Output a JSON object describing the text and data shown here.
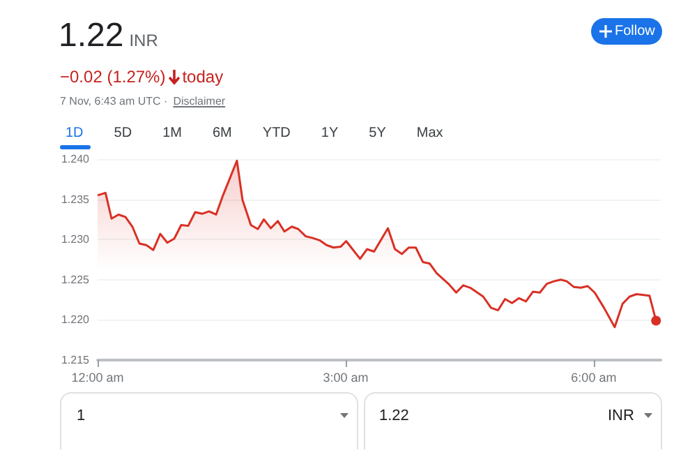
{
  "chart_data": {
    "type": "area",
    "title": "1.22",
    "annotations": [
      "INR",
      "−0.02 (1.27%)",
      "today",
      "7 Nov, 6:43 am UTC ·",
      "Disclaimer",
      "Follow",
      "1D",
      "5D",
      "1M",
      "6M",
      "YTD",
      "1Y",
      "5Y",
      "Max",
      "1",
      "1.22",
      "INR"
    ],
    "series": [
      {
        "color": "#d93025",
        "x": [
          0,
          0.096,
          0.169,
          0.253,
          0.337,
          0.421,
          0.506,
          0.59,
          0.674,
          0.758,
          0.843,
          0.927,
          1.011,
          1.096,
          1.18,
          1.264,
          1.348,
          1.433,
          1.517,
          1.685,
          1.753,
          1.854,
          1.938,
          2.011,
          2.095,
          2.18,
          2.259,
          2.348,
          2.427,
          2.517,
          2.596,
          2.685,
          2.769,
          2.854,
          2.938,
          3.006,
          3.174,
          3.258,
          3.343,
          3.511,
          3.596,
          3.68,
          3.764,
          3.848,
          3.933,
          4.017,
          4.101,
          4.242,
          4.337,
          4.421,
          4.506,
          4.663,
          4.758,
          4.843,
          4.927,
          5.011,
          5.096,
          5.18,
          5.264,
          5.348,
          5.433,
          5.517,
          5.601,
          5.674,
          5.758,
          5.843,
          5.927,
          6.011,
          6.124,
          6.253,
          6.348,
          6.433,
          6.517,
          6.674,
          6.753
        ],
        "values": [
          1.2355,
          1.2358,
          1.2326,
          1.2331,
          1.2328,
          1.2316,
          1.2295,
          1.2293,
          1.2287,
          1.2307,
          1.2296,
          1.2301,
          1.2318,
          1.2317,
          1.2334,
          1.2332,
          1.2335,
          1.2331,
          1.2355,
          1.2398,
          1.2349,
          1.2318,
          1.2313,
          1.2325,
          1.2314,
          1.2323,
          1.231,
          1.2316,
          1.2313,
          1.2304,
          1.2302,
          1.2299,
          1.2293,
          1.229,
          1.2291,
          1.2298,
          1.2276,
          1.2288,
          1.2285,
          1.2314,
          1.2288,
          1.2282,
          1.229,
          1.229,
          1.2272,
          1.227,
          1.2258,
          1.2245,
          1.2234,
          1.2243,
          1.224,
          1.2229,
          1.2215,
          1.2212,
          1.2226,
          1.2221,
          1.2227,
          1.2223,
          1.2235,
          1.2234,
          1.2245,
          1.2248,
          1.225,
          1.2248,
          1.2241,
          1.224,
          1.2242,
          1.2234,
          1.2215,
          1.2191,
          1.222,
          1.2229,
          1.2232,
          1.223,
          1.2199
        ]
      }
    ],
    "xlim": [
      0,
      6.81
    ],
    "xticks": [
      {
        "value": 0,
        "label": "12:00 am"
      },
      {
        "value": 3,
        "label": "3:00 am"
      },
      {
        "value": 6,
        "label": "6:00 am"
      }
    ],
    "ylim": [
      1.215,
      1.24
    ],
    "yticks": [
      {
        "value": 1.215,
        "label": "1.215"
      },
      {
        "value": 1.22,
        "label": "1.220"
      },
      {
        "value": 1.225,
        "label": "1.225"
      },
      {
        "value": 1.23,
        "label": "1.230"
      },
      {
        "value": 1.235,
        "label": "1.235"
      },
      {
        "value": 1.24,
        "label": "1.240"
      }
    ],
    "grid": "y",
    "line_style": "solid"
  }
}
